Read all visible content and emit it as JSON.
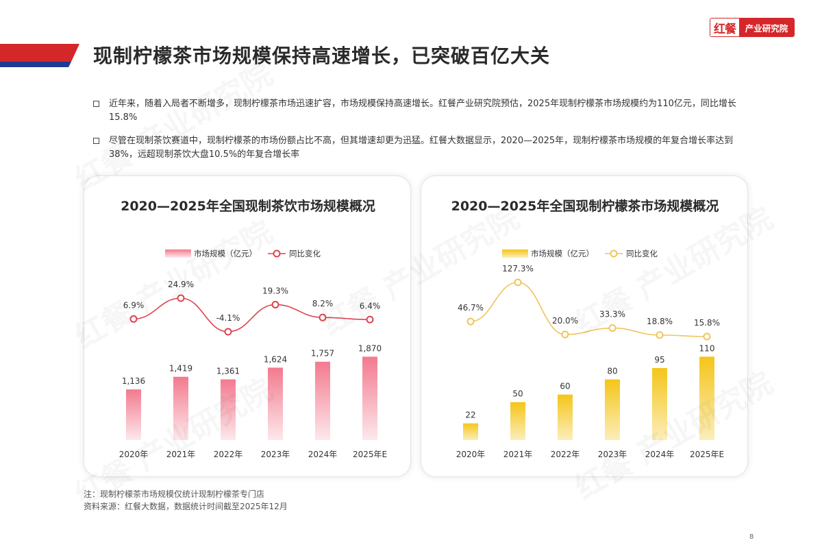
{
  "header": {
    "title": "现制柠檬茶市场规模保持高速增长，已突破百亿大关",
    "logo": {
      "mark": "红餐",
      "text": "产业研究院"
    },
    "accent_color": "#d5262a",
    "accent_color_2": "#1f3a93"
  },
  "bullets": [
    "近年来，随着入局者不断增多，现制柠檬茶市场迅速扩容，市场规模保持高速增长。红餐产业研究院预估，2025年现制柠檬茶市场规模约为110亿元，同比增长15.8%",
    "尽管在现制茶饮赛道中，现制柠檬茶的市场份额占比不高，但其增速却更为迅猛。红餐大数据显示，2020—2025年，现制柠檬茶市场规模的年复合增长率达到38%，远超现制茶饮大盘10.5%的年复合增长率"
  ],
  "chart_data": [
    {
      "type": "bar",
      "title": "2020—2025年全国现制茶饮市场规模概况",
      "categories": [
        "2020年",
        "2021年",
        "2022年",
        "2023年",
        "2024年",
        "2025年E"
      ],
      "series": [
        {
          "name": "市场规模（亿元）",
          "type": "bar",
          "values": [
            1136,
            1419,
            1361,
            1624,
            1757,
            1870
          ],
          "labels": [
            "1,136",
            "1,419",
            "1,361",
            "1,624",
            "1,757",
            "1,870"
          ],
          "color": "#f07a8e"
        },
        {
          "name": "同比变化",
          "type": "line",
          "values": [
            6.9,
            24.9,
            -4.1,
            19.3,
            8.2,
            6.4
          ],
          "labels": [
            "6.9%",
            "24.9%",
            "-4.1%",
            "19.3%",
            "8.2%",
            "6.4%"
          ],
          "color": "#e04050"
        }
      ],
      "legend": "top-left",
      "grid": false
    },
    {
      "type": "bar",
      "title": "2020—2025年全国现制柠檬茶市场规模概况",
      "categories": [
        "2020年",
        "2021年",
        "2022年",
        "2023年",
        "2024年",
        "2025年E"
      ],
      "series": [
        {
          "name": "市场规模（亿元）",
          "type": "bar",
          "values": [
            22,
            50,
            60,
            80,
            95,
            110
          ],
          "labels": [
            "22",
            "50",
            "60",
            "80",
            "95",
            "110"
          ],
          "color": "#f3c52c"
        },
        {
          "name": "同比变化",
          "type": "line",
          "values": [
            46.7,
            127.3,
            20.0,
            33.3,
            18.8,
            15.8
          ],
          "labels": [
            "46.7%",
            "127.3%",
            "20.0%",
            "33.3%",
            "18.8%",
            "15.8%"
          ],
          "color": "#f0c45a"
        }
      ],
      "legend": "top-left",
      "grid": false
    }
  ],
  "footnotes": {
    "note": "注：现制柠檬茶市场规模仅统计现制柠檬茶专门店",
    "source": "资料来源：红餐大数据，数据统计时间截至2025年12月"
  },
  "page_number": "8",
  "watermark": "红餐 产业研究院"
}
